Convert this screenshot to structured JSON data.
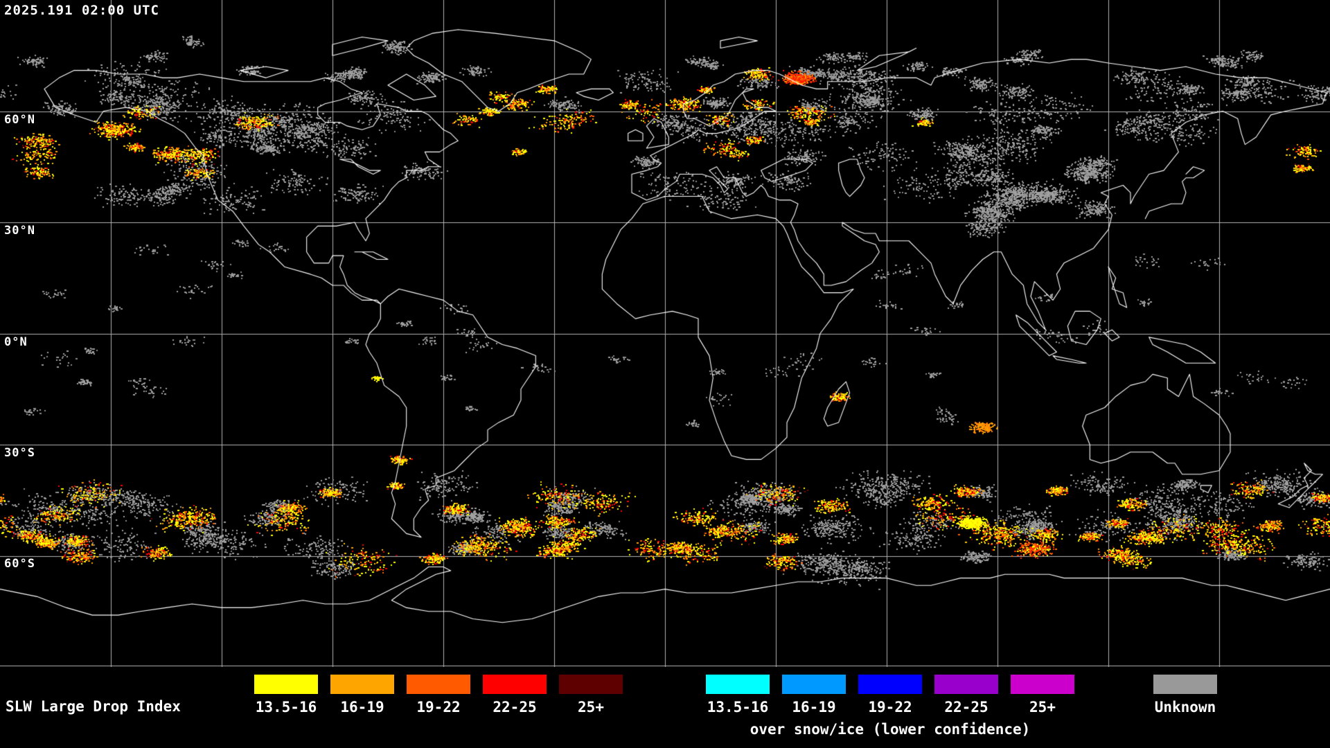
{
  "header": {
    "timestamp": "2025.191 02:00 UTC"
  },
  "map": {
    "lat_labels": [
      "60°N",
      "30°N",
      "0°N",
      "30°S",
      "60°S"
    ]
  },
  "legend": {
    "title": "SLW Large Drop Index",
    "standard": {
      "ranges": [
        "13.5-16",
        "16-19",
        "19-22",
        "22-25",
        "25+"
      ],
      "colors": [
        "#ffff00",
        "#ffa500",
        "#ff5a00",
        "#ff0000",
        "#5e0000"
      ]
    },
    "snow_ice": {
      "ranges": [
        "13.5-16",
        "16-19",
        "19-22",
        "22-25",
        "25+"
      ],
      "colors": [
        "#00ffff",
        "#0099ff",
        "#0000ff",
        "#9900cc",
        "#cc00cc"
      ],
      "caption": "over snow/ice (lower confidence)"
    },
    "unknown": {
      "label": "Unknown",
      "color": "#999999"
    }
  }
}
